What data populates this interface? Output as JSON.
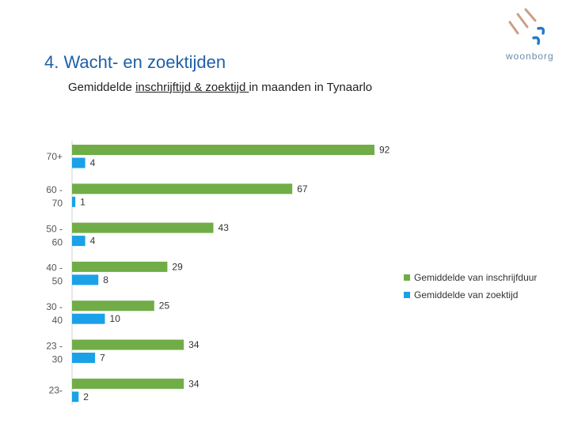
{
  "header": {
    "title": "4. Wacht- en zoektijden",
    "subtitle_pre": "Gemiddelde ",
    "subtitle_underlined": "inschrijftijd & zoektijd ",
    "subtitle_post": "in maanden in Tynaarlo"
  },
  "logo": {
    "text": "woonborg",
    "color": "#6b8aa8",
    "accent": "#2a77c9",
    "mark_color": "#c9a087"
  },
  "colors": {
    "green": "#70ad47",
    "blue": "#1aa1e8"
  },
  "chart_data": {
    "type": "bar",
    "orientation": "horizontal",
    "categories": [
      [
        "70+"
      ],
      [
        "60 -",
        "70"
      ],
      [
        "50 -",
        "60"
      ],
      [
        "40 -",
        "50"
      ],
      [
        "30 -",
        "40"
      ],
      [
        "23 -",
        "30"
      ],
      [
        "23-"
      ]
    ],
    "series": [
      {
        "name": "Gemiddelde van inschrijfduur",
        "color": "#70ad47",
        "values": [
          92,
          67,
          43,
          29,
          25,
          34,
          34
        ]
      },
      {
        "name": "Gemiddelde van zoektijd",
        "color": "#1aa1e8",
        "values": [
          4,
          1,
          4,
          8,
          10,
          7,
          2
        ]
      }
    ],
    "xlim": [
      0,
      92
    ],
    "grid": false,
    "legend_position": "right"
  }
}
